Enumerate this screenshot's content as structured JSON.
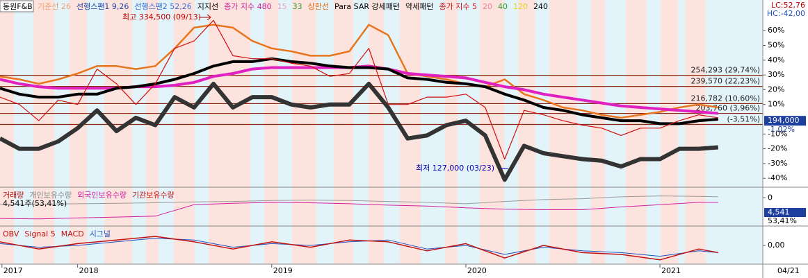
{
  "stock_name": "동원F&B",
  "top_right": [
    "LC:52,76",
    "HC:-42,00"
  ],
  "last_date_label": "04/21",
  "chart_data": [
    {
      "type": "line",
      "legend": [
        {
          "text": "기준선 26",
          "color": "#f3a36b"
        },
        {
          "text": "선행스팬1 9,26",
          "color": "#2244aa"
        },
        {
          "text": "선행스팬2 52,26",
          "color": "#3a6fd8"
        },
        {
          "text": "지지선",
          "color": "#000000"
        },
        {
          "text": "종가 지수 480",
          "color": "#d0209a"
        },
        {
          "text": "15",
          "color": "#f2a0c0"
        },
        {
          "text": "33",
          "color": "#2e9a2e"
        },
        {
          "text": "상한선",
          "color": "#e0701a"
        },
        {
          "text": "Para SAR 강세패턴",
          "color": "#000000"
        },
        {
          "text": "약세패턴",
          "color": "#000000"
        },
        {
          "text": "종가 지수 5",
          "color": "#d01010"
        },
        {
          "text": "20",
          "color": "#f080a0"
        },
        {
          "text": "40",
          "color": "#2e9a2e"
        },
        {
          "text": "120",
          "color": "#e8d020"
        },
        {
          "text": "240",
          "color": "#000000"
        }
      ],
      "x": [
        2017.6,
        2017.7,
        2017.8,
        2017.9,
        2018.0,
        2018.1,
        2018.2,
        2018.3,
        2018.4,
        2018.5,
        2018.6,
        2018.7,
        2018.8,
        2018.9,
        2019.0,
        2019.1,
        2019.2,
        2019.3,
        2019.4,
        2019.5,
        2019.6,
        2019.7,
        2019.8,
        2019.9,
        2020.0,
        2020.1,
        2020.2,
        2020.3,
        2020.4,
        2020.5,
        2020.6,
        2020.7,
        2020.8,
        2020.9,
        2021.0,
        2021.1,
        2021.2,
        2021.3
      ],
      "series": [
        {
          "color": "#e8741c",
          "width": 2.5,
          "values": [
            29,
            27,
            24,
            27,
            31,
            36,
            36,
            34,
            36,
            48,
            62,
            64,
            62,
            53,
            48,
            46,
            43,
            43,
            46,
            64,
            57,
            31,
            29,
            27,
            24,
            22,
            27,
            17,
            13,
            8,
            6,
            3,
            1,
            3,
            5,
            8,
            10,
            8
          ]
        },
        {
          "color": "#e020c0",
          "width": 4,
          "values": [
            27,
            24,
            22,
            21,
            21,
            21,
            21,
            22,
            22,
            23,
            25,
            29,
            31,
            34,
            35,
            35,
            35,
            35,
            35,
            36,
            34,
            31,
            30,
            29,
            28,
            25,
            22,
            20,
            17,
            15,
            13,
            11,
            9,
            8,
            7,
            6,
            5,
            4
          ]
        },
        {
          "color": "#333333",
          "width": 6,
          "values": [
            -13,
            -20,
            -20,
            -15,
            -6,
            6,
            -8,
            1,
            -4,
            15,
            8,
            24,
            8,
            15,
            15,
            10,
            8,
            10,
            10,
            24,
            8,
            -13,
            -11,
            -4,
            -1,
            -11,
            -41,
            -18,
            -23,
            -25,
            -27,
            -28,
            -32,
            -27,
            -27,
            -20,
            -20,
            -19
          ]
        },
        {
          "color": "#000000",
          "width": 4,
          "values": [
            21,
            17,
            15,
            15,
            17,
            17,
            21,
            22,
            24,
            27,
            31,
            36,
            39,
            39,
            41,
            39,
            38,
            36,
            35,
            35,
            34,
            28,
            27,
            25,
            24,
            22,
            17,
            13,
            8,
            6,
            3,
            1,
            -1,
            -1,
            -3,
            -3,
            -1,
            0
          ]
        },
        {
          "color": "#d01010",
          "width": 1.2,
          "values": [
            15,
            10,
            -1,
            13,
            10,
            34,
            24,
            10,
            24,
            48,
            53,
            67,
            43,
            41,
            41,
            38,
            36,
            29,
            31,
            48,
            10,
            10,
            15,
            15,
            17,
            8,
            -27,
            6,
            3,
            -1,
            -4,
            -6,
            -11,
            -6,
            -6,
            -1,
            3,
            1
          ]
        }
      ],
      "levels": [
        {
          "value": 29.74,
          "label": "254,293 (29,74%)"
        },
        {
          "value": 22.23,
          "label": "239,570 (22,23%)"
        },
        {
          "value": 10.6,
          "label": "216,782 (10,60%)"
        },
        {
          "value": 3.96,
          "label": "203,760 (3,96%)"
        },
        {
          "value": -3.51,
          "label": "(-3,51%)"
        }
      ],
      "current": {
        "value": -1.02,
        "price_label": "194,000",
        "pct_label": "-1,02%"
      },
      "annotations": [
        {
          "text": "최고 334,500 (09/13)",
          "color": "#c00000"
        },
        {
          "text": "최저 127,000 (03/23)",
          "color": "#0000c0"
        }
      ],
      "xlim": [
        2017.6,
        2021.53
      ],
      "ylim": [
        -46,
        80.75
      ],
      "yticks": [
        {
          "value": 60,
          "label": "60%"
        },
        {
          "value": 50,
          "label": "50%"
        },
        {
          "value": 40,
          "label": "40%"
        },
        {
          "value": 30,
          "label": "30%"
        },
        {
          "value": 20,
          "label": "20%"
        },
        {
          "value": 10,
          "label": "10%"
        },
        {
          "value": -10,
          "label": "-10%"
        },
        {
          "value": -20,
          "label": "-20%"
        },
        {
          "value": -30,
          "label": "-30%"
        },
        {
          "value": -40,
          "label": "-40%"
        }
      ],
      "xticks": [
        {
          "value": 2017.61,
          "label": "2017"
        },
        2018,
        2019,
        2020,
        2021
      ]
    },
    {
      "type": "line",
      "legend": [
        {
          "text": "거래량",
          "color": "#c01010"
        },
        {
          "text": "개인보유수량",
          "color": "#888888"
        },
        {
          "text": "외국인보유수량",
          "color": "#d020a0"
        },
        {
          "text": "기관보유수량",
          "color": "#c01010"
        }
      ],
      "info": "4,541주(53,41%)",
      "current_label": "4,541",
      "current_pct": "53,41%",
      "x": [
        2017.6,
        2017.8,
        2018.0,
        2018.2,
        2018.4,
        2018.6,
        2018.8,
        2019.0,
        2019.2,
        2019.4,
        2019.6,
        2019.8,
        2020.0,
        2020.2,
        2020.4,
        2020.6,
        2020.8,
        2021.0,
        2021.2,
        2021.3
      ],
      "series": [
        {
          "color": "#d020a0",
          "width": 1,
          "values": [
            -4.5,
            -4.6,
            -4.4,
            -4.2,
            -4.0,
            -1.5,
            -1.2,
            -1.0,
            -1.1,
            -1.3,
            -1.6,
            -1.8,
            -2.2,
            -2.5,
            -2.6,
            -2.6,
            -2.0,
            -1.5,
            -1.0,
            -1.0
          ]
        },
        {
          "color": "#999999",
          "width": 1,
          "values": [
            -1.5,
            -1.4,
            -1.3,
            -1.2,
            -1.1,
            -0.9,
            -0.8,
            -0.6,
            -0.5,
            -0.6,
            -0.8,
            -1.0,
            -1.3,
            -0.8,
            -0.4,
            -0.2,
            0.2,
            0.4,
            0.3,
            0.2
          ]
        }
      ],
      "xlim": [
        2017.6,
        2021.53
      ],
      "ylim": [
        -6,
        2
      ],
      "yticks": [
        0
      ]
    },
    {
      "type": "line",
      "legend": [
        {
          "text": "OBV",
          "color": "#c01010"
        },
        {
          "text": "Signal 5",
          "color": "#c01010"
        },
        {
          "text": "MACD",
          "color": "#c01010"
        },
        {
          "text": "시그널",
          "color": "#2050c0"
        }
      ],
      "x": [
        2017.6,
        2017.8,
        2018.0,
        2018.2,
        2018.4,
        2018.6,
        2018.8,
        2019.0,
        2019.2,
        2019.4,
        2019.6,
        2019.8,
        2020.0,
        2020.2,
        2020.4,
        2020.6,
        2020.8,
        2021.0,
        2021.2,
        2021.3
      ],
      "series": [
        {
          "color": "#2050c0",
          "width": 1,
          "values": [
            0.1,
            -0.1,
            0.0,
            0.2,
            0.4,
            0.3,
            -0.1,
            0.1,
            0.0,
            0.2,
            0.3,
            -0.2,
            0.0,
            -0.5,
            -0.1,
            -0.3,
            -0.4,
            -0.6,
            -0.3,
            -0.4
          ]
        },
        {
          "color": "#c01010",
          "width": 1.5,
          "values": [
            0.2,
            -0.2,
            0.1,
            0.3,
            0.5,
            0.2,
            -0.2,
            0.2,
            -0.1,
            0.3,
            0.2,
            -0.3,
            0.1,
            -0.7,
            0.0,
            -0.4,
            -0.5,
            -0.8,
            -0.2,
            -0.4
          ]
        }
      ],
      "xlim": [
        2017.6,
        2021.53
      ],
      "ylim": [
        -1,
        1
      ],
      "yticks": [
        {
          "value": 0,
          "label": "0,00"
        }
      ]
    }
  ]
}
